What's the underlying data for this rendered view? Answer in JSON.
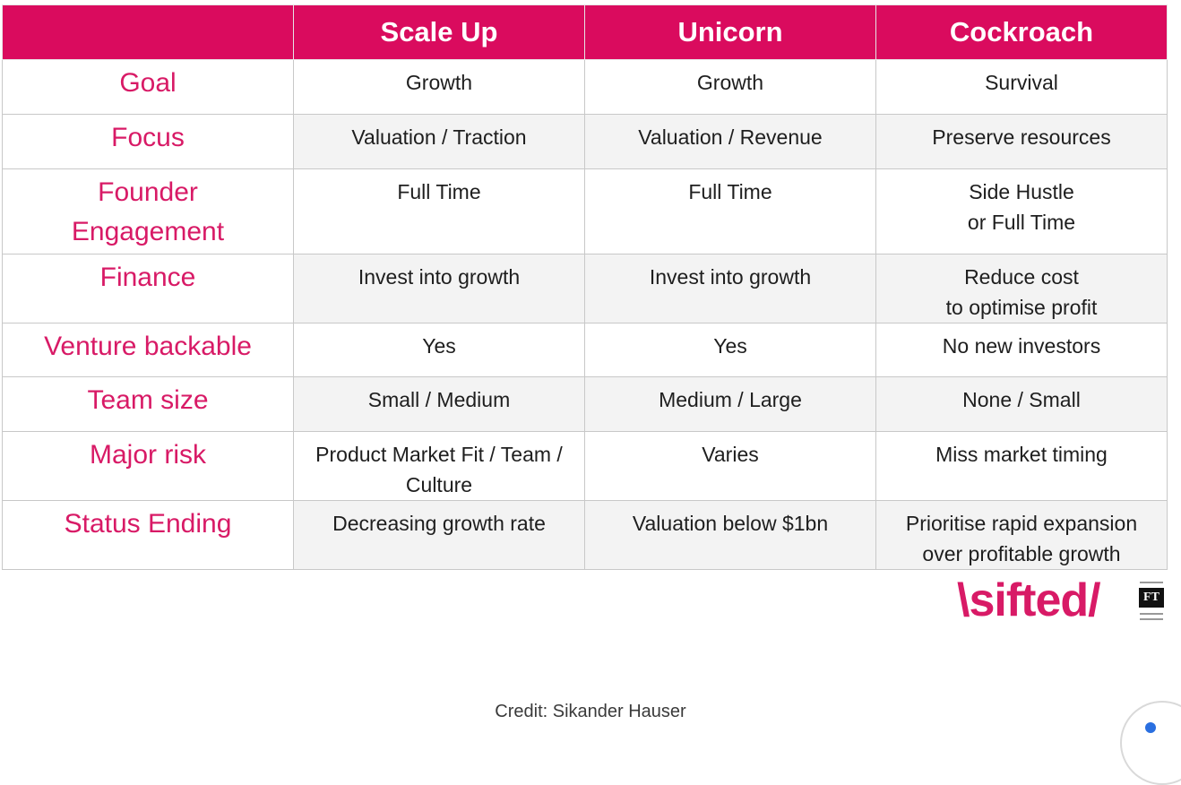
{
  "table": {
    "headers": [
      "",
      "Scale Up",
      "Unicorn",
      "Cockroach"
    ],
    "rows": [
      {
        "label": "Goal",
        "values": [
          "Growth",
          "Growth",
          "Survival"
        ]
      },
      {
        "label": "Focus",
        "values": [
          "Valuation / Traction",
          "Valuation / Revenue",
          "Preserve resources"
        ]
      },
      {
        "label": "Founder\nEngagement",
        "values": [
          "Full Time",
          "Full Time",
          "Side Hustle\nor Full Time"
        ]
      },
      {
        "label": "Finance",
        "values": [
          "Invest into growth",
          "Invest into growth",
          "Reduce cost\nto optimise profit"
        ]
      },
      {
        "label": "Venture backable",
        "values": [
          "Yes",
          "Yes",
          "No new investors"
        ]
      },
      {
        "label": "Team size",
        "values": [
          "Small / Medium",
          "Medium / Large",
          "None / Small"
        ]
      },
      {
        "label": "Major risk",
        "values": [
          "Product Market Fit / Team /\nCulture",
          "Varies",
          "Miss market timing"
        ]
      },
      {
        "label": "Status Ending",
        "values": [
          "Decreasing growth rate",
          "Valuation below $1bn",
          "Prioritise rapid expansion\nover profitable growth"
        ]
      }
    ]
  },
  "logo": {
    "text": "\\sifted/",
    "badge": "FT"
  },
  "credit": "Credit: Sikander Hauser",
  "colors": {
    "header_bg": "#da0b5e",
    "row_label": "#d81a66",
    "accent_dot": "#2a6fe0"
  }
}
